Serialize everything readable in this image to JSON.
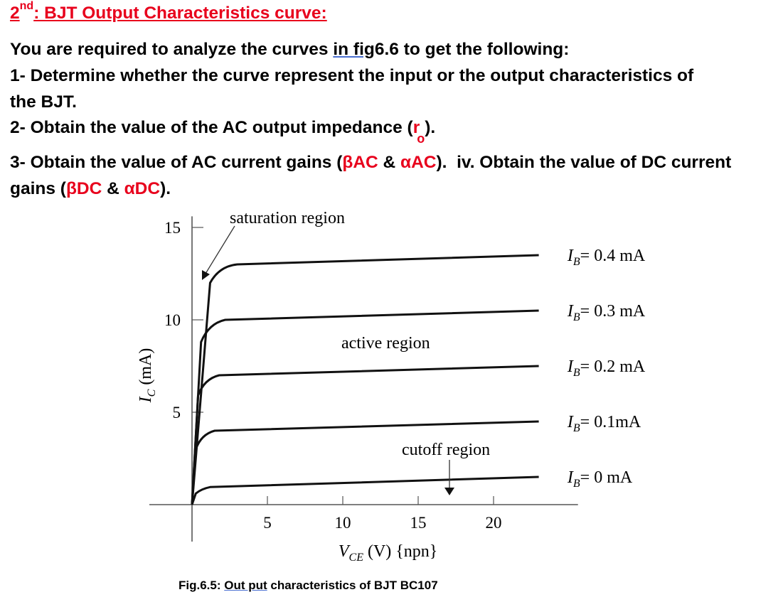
{
  "heading": {
    "number": "2",
    "superscript": "nd",
    "title": ": BJT Output Characteristics curve:"
  },
  "paragraphs": {
    "intro_part1": "You are required to analyze the curves ",
    "intro_link": "in  fig",
    "intro_part2": "6.6 to get the following:",
    "q1_line1": "1- Determine whether the curve represent the input or the output characteristics of",
    "q1_line2": "the BJT.",
    "q2_text": "2- Obtain the value of the AC output impedance (",
    "q2_symbol": "r",
    "q2_subscript": "o",
    "q2_end": ").",
    "q3_start": "3- Obtain the value of AC current gains (",
    "q3_beta_ac": "βAC",
    "q3_amp1": " & ",
    "q3_alpha_ac": "αAC",
    "q3_mid": ").  iv. Obtain the value of DC current",
    "q3_line2_start": "gains (",
    "q3_beta_dc": "βDC",
    "q3_amp2": " & ",
    "q3_alpha_dc": "αDC",
    "q3_line2_end": ")."
  },
  "chart_data": {
    "type": "line",
    "xlabel": "V_CE (V) {npn}",
    "ylabel": "I_C (mA)",
    "xlim": [
      0,
      25
    ],
    "ylim": [
      0,
      16
    ],
    "x_ticks": [
      5,
      10,
      15,
      20
    ],
    "y_ticks": [
      5,
      10,
      15
    ],
    "series": [
      {
        "name": "I_B = 0 mA",
        "label": "I_B = 0 mA",
        "x": [
          0,
          0.25,
          0.6,
          1.2,
          23
        ],
        "y": [
          0,
          0.6,
          0.85,
          0.95,
          1.5
        ]
      },
      {
        "name": "I_B = 0.1mA",
        "label": "I_B = 0.1mA",
        "x": [
          0,
          0.25,
          0.6,
          1.5,
          23
        ],
        "y": [
          0,
          3.0,
          3.8,
          4.0,
          4.5
        ]
      },
      {
        "name": "I_B = 0.2 mA",
        "label": "I_B = 0.2 mA",
        "x": [
          0,
          0.4,
          0.8,
          1.8,
          23
        ],
        "y": [
          0,
          5.9,
          6.8,
          7.0,
          7.5
        ]
      },
      {
        "name": "I_B = 0.3 mA",
        "label": "I_B = 0.3 mA",
        "x": [
          0,
          0.6,
          1.1,
          2.2,
          23
        ],
        "y": [
          0,
          8.8,
          9.8,
          10.0,
          10.5
        ]
      },
      {
        "name": "I_B = 0.4 mA",
        "label": "I_B = 0.4 mA",
        "x": [
          0,
          1.2,
          1.8,
          3.0,
          23
        ],
        "y": [
          0,
          12.0,
          12.9,
          13.0,
          13.5
        ]
      }
    ],
    "annotations": [
      "saturation region",
      "active region",
      "cutoff region"
    ],
    "grid": false
  },
  "caption": {
    "prefix": "Fig.6.5: ",
    "underlined": "Out put",
    "suffix": " characteristics of BJT BC107"
  }
}
